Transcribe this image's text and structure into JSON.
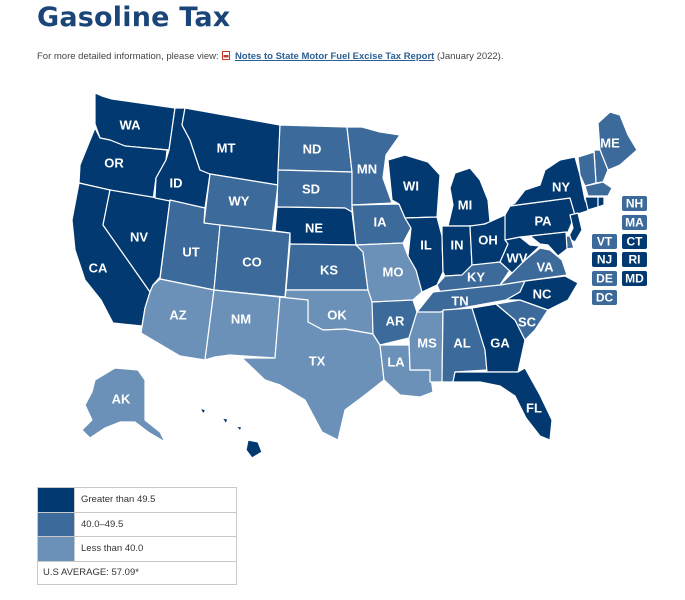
{
  "page": {
    "title": "Gasoline Tax",
    "subtitle_prefix": "For more detailed information, please view:",
    "link_text": "Notes to State Motor Fuel Excise Tax Report",
    "subtitle_suffix": "(January 2022).",
    "pdf_icon": "pdf-file-icon"
  },
  "colors": {
    "high": "#023970",
    "mid": "#3c6a9a",
    "low": "#6b91b8"
  },
  "legend": {
    "rows": [
      {
        "label": "Greater than 49.5",
        "category": "high"
      },
      {
        "label": "40.0–49.5",
        "category": "mid"
      },
      {
        "label": "Less than 40.0",
        "category": "low"
      }
    ],
    "footnote": "U.S AVERAGE: 57.09*"
  },
  "states": {
    "WA": "high",
    "OR": "high",
    "CA": "high",
    "NV": "high",
    "ID": "high",
    "MT": "high",
    "WY": "mid",
    "UT": "mid",
    "AZ": "low",
    "CO": "mid",
    "NM": "low",
    "ND": "mid",
    "SD": "mid",
    "NE": "high",
    "KS": "mid",
    "OK": "low",
    "TX": "low",
    "MN": "mid",
    "IA": "mid",
    "MO": "low",
    "AR": "mid",
    "LA": "low",
    "WI": "high",
    "IL": "high",
    "MS": "low",
    "MI": "high",
    "IN": "high",
    "OH": "high",
    "KY": "mid",
    "TN": "mid",
    "AL": "mid",
    "GA": "high",
    "FL": "high",
    "SC": "mid",
    "NC": "high",
    "VA": "mid",
    "WV": "high",
    "PA": "high",
    "NY": "high",
    "ME": "mid",
    "AK": "low",
    "HI": "high",
    "NH": "mid",
    "MA": "mid",
    "VT": "mid",
    "CT": "high",
    "NJ": "high",
    "RI": "high",
    "DE": "mid",
    "MD": "high",
    "DC": "mid"
  }
}
